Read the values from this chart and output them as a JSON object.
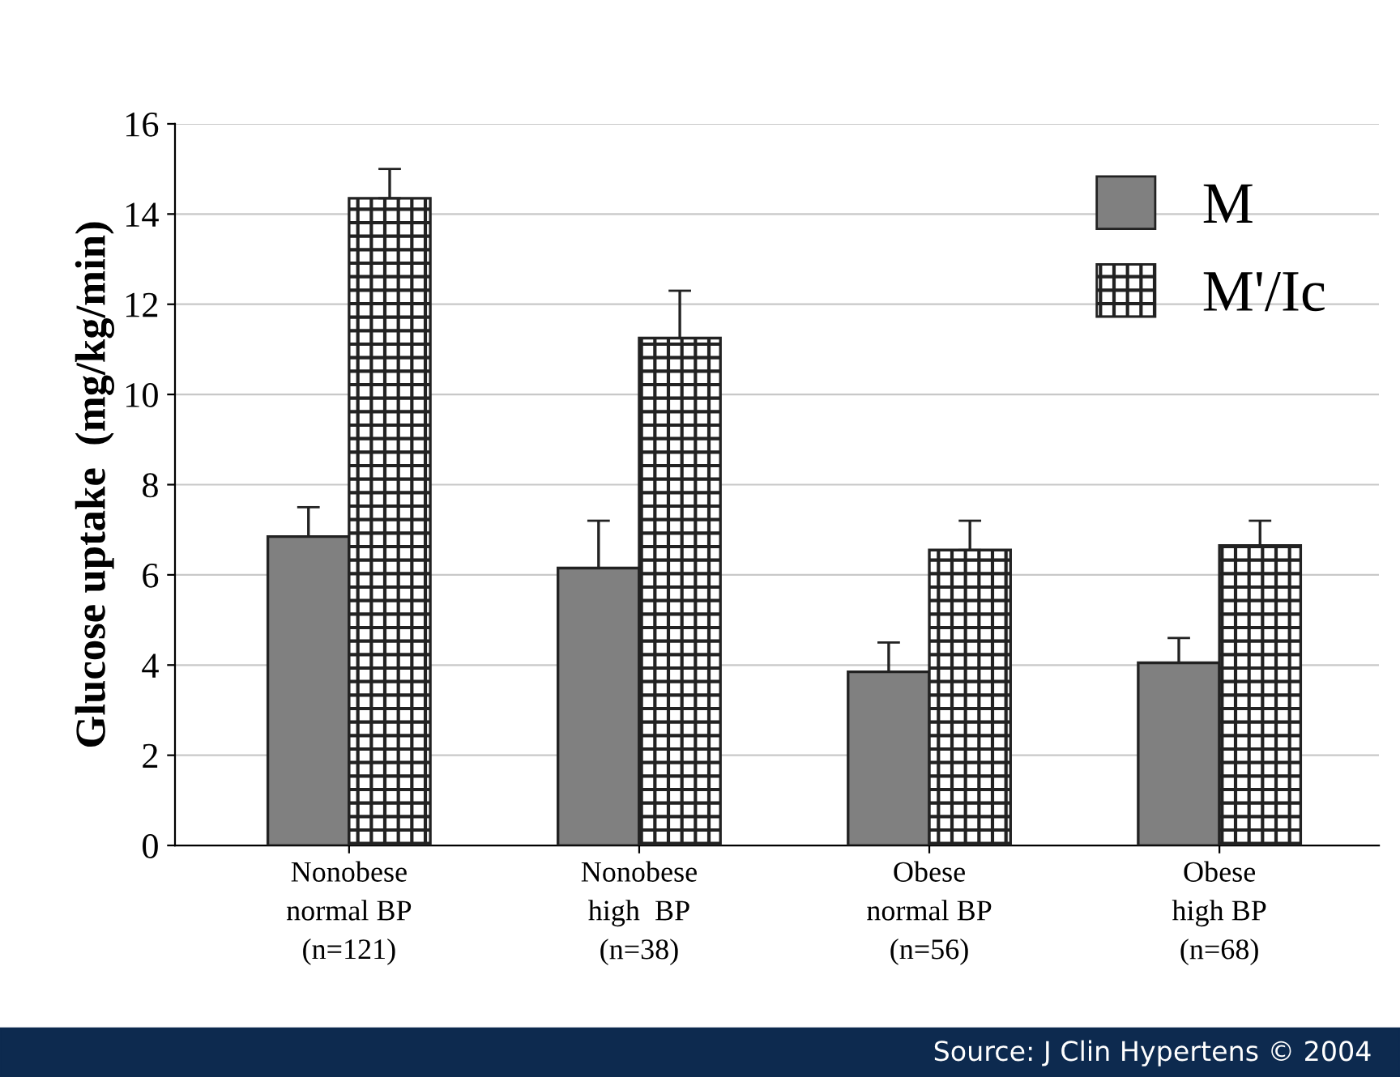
{
  "chart_data": {
    "type": "bar",
    "ylabel": "Glucose uptake  (mg/kg/min)",
    "categories": [
      "Nonobese\nnormal BP\n(n=121)",
      "Nonobese\nhigh  BP\n(n=38)",
      "Obese\nnormal BP\n(n=56)",
      "Obese\nhigh BP\n(n=68)"
    ],
    "series": [
      {
        "name": "M",
        "color": "#808080",
        "values": [
          6.85,
          6.15,
          3.85,
          4.05
        ],
        "errors": [
          0.65,
          1.05,
          0.65,
          0.55
        ]
      },
      {
        "name": "M'/Ic",
        "color": "#222222",
        "values": [
          14.35,
          11.25,
          6.55,
          6.65
        ],
        "errors": [
          0.65,
          1.05,
          0.65,
          0.55
        ]
      }
    ],
    "ylim": [
      0,
      16
    ],
    "yticks": [
      0,
      2,
      4,
      6,
      8,
      10,
      12,
      14,
      16
    ],
    "grid": "y",
    "legend": "top right",
    "annotations": [
      "Source: J Clin Hypertens © 2004"
    ]
  }
}
